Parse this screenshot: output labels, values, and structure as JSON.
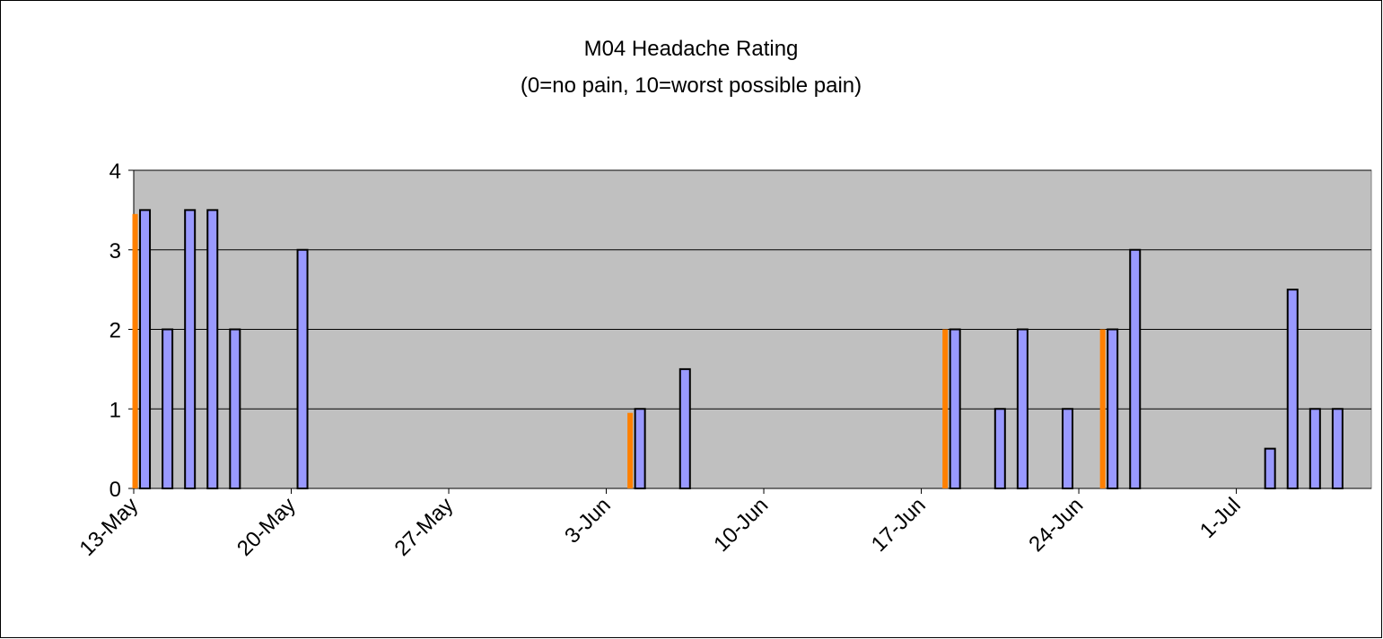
{
  "chart_data": {
    "type": "bar",
    "title": "M04 Headache Rating",
    "subtitle": "(0=no pain, 10=worst possible pain)",
    "x": [
      0,
      1,
      2,
      3,
      4,
      7,
      22,
      24,
      36,
      38,
      39,
      41,
      43,
      44,
      50,
      51,
      52,
      53
    ],
    "series": [
      {
        "color": "#9999ff",
        "values": [
          3.5,
          2,
          3.5,
          3.5,
          2,
          3,
          1,
          1.5,
          2,
          1,
          2,
          1,
          2,
          3,
          0.5,
          2.5,
          1,
          1
        ]
      },
      {
        "color": "#ff8000",
        "values": [
          3.45,
          null,
          null,
          null,
          null,
          null,
          0.95,
          null,
          2,
          null,
          null,
          null,
          2,
          null,
          null,
          null,
          null,
          null
        ]
      }
    ],
    "xlim": [
      0,
      55
    ],
    "xticks": [
      {
        "value": 0,
        "label": "13-May"
      },
      {
        "value": 7,
        "label": "20-May"
      },
      {
        "value": 14,
        "label": "27-May"
      },
      {
        "value": 21,
        "label": "3-Jun"
      },
      {
        "value": 28,
        "label": "10-Jun"
      },
      {
        "value": 35,
        "label": "17-Jun"
      },
      {
        "value": 42,
        "label": "24-Jun"
      },
      {
        "value": 49,
        "label": "1-Jul"
      }
    ],
    "ylim": [
      0,
      4
    ],
    "yticks": [
      0,
      1,
      2,
      3,
      4
    ],
    "grid": true,
    "plot_background": "#c0c0c0"
  }
}
